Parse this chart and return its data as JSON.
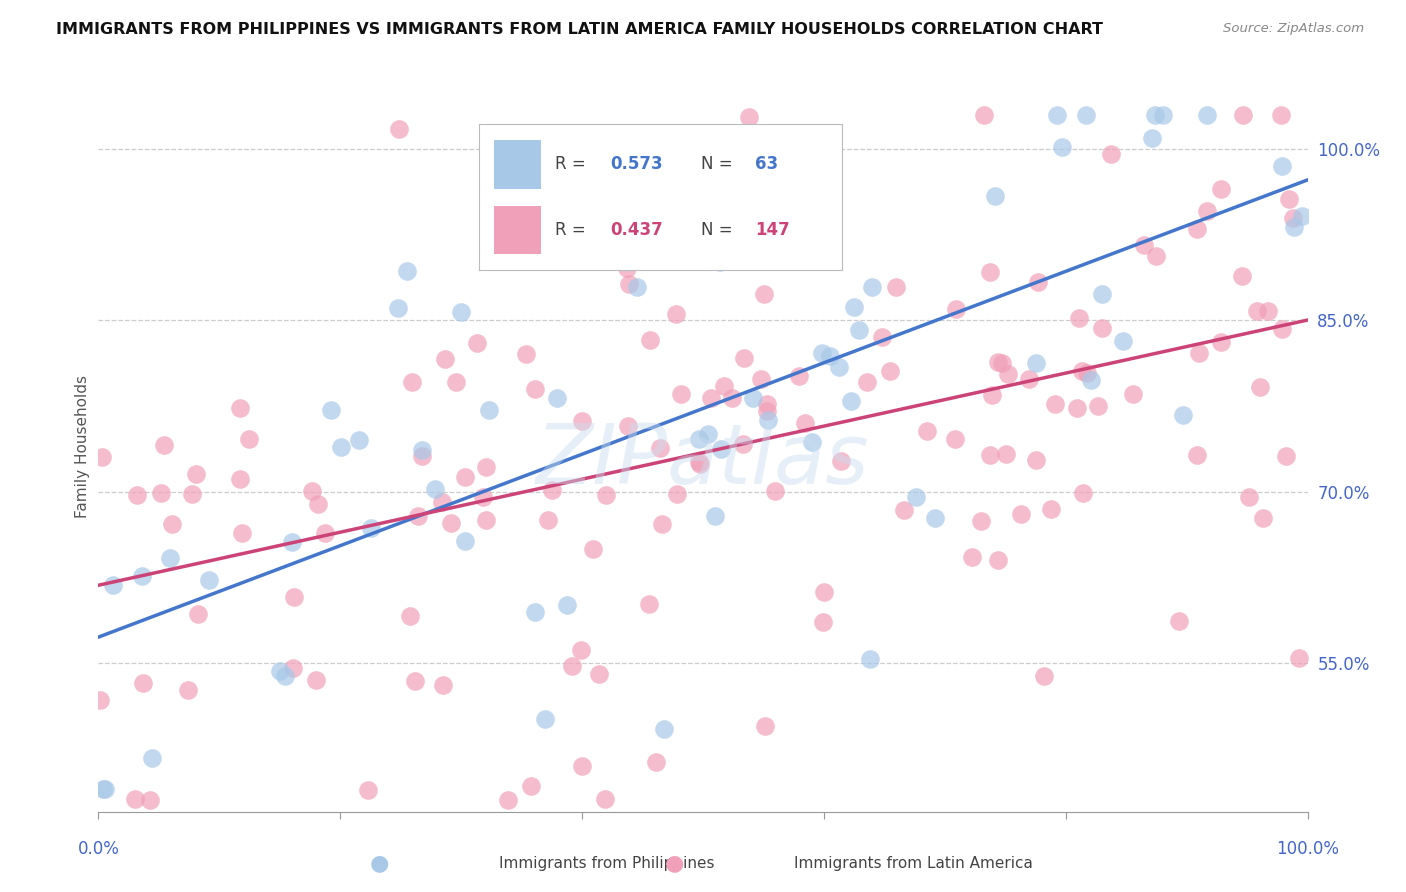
{
  "title": "IMMIGRANTS FROM PHILIPPINES VS IMMIGRANTS FROM LATIN AMERICA FAMILY HOUSEHOLDS CORRELATION CHART",
  "source": "Source: ZipAtlas.com",
  "ylabel": "Family Households",
  "xlim": [
    0.0,
    1.0
  ],
  "ylim": [
    0.42,
    1.06
  ],
  "blue_R": "0.573",
  "blue_N": 63,
  "pink_R": "0.437",
  "pink_N": 147,
  "blue_scatter_color": "#a8c8e8",
  "blue_line_color": "#4477cc",
  "pink_scatter_color": "#f0a0b8",
  "pink_line_color": "#cc4477",
  "legend_label_blue": "Immigrants from Philippines",
  "legend_label_pink": "Immigrants from Latin America",
  "watermark": "ZIPatlas",
  "background_color": "#ffffff",
  "grid_color": "#cccccc",
  "title_fontsize": 11.5,
  "axis_label_color": "#4466cc",
  "right_yticks": [
    1.0,
    0.85,
    0.7,
    0.55
  ],
  "right_yticklabels": [
    "100.0%",
    "85.0%",
    "70.0%",
    "55.0%"
  ],
  "blue_intercept": 0.615,
  "blue_slope": 0.365,
  "pink_intercept": 0.64,
  "pink_slope": 0.195
}
